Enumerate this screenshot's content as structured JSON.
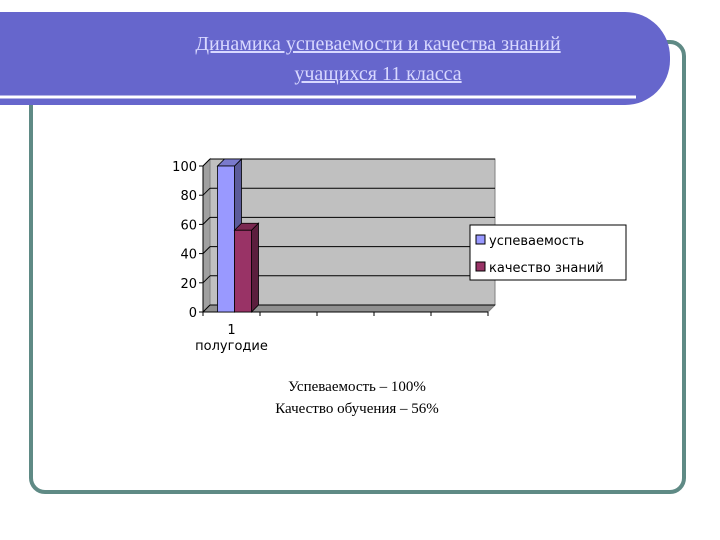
{
  "slide": {
    "title": [
      "Динамика успеваемости и качества знаний",
      "учащихся 11 класса"
    ],
    "notes": [
      "Успеваемость – 100%",
      "Качество обучения – 56%"
    ]
  },
  "chart_data": {
    "type": "bar",
    "categories": [
      "1 полугодие",
      null,
      null,
      null,
      null
    ],
    "series": [
      {
        "name": "успеваемость",
        "color": "#9999ff",
        "values": [
          100,
          null,
          null,
          null,
          null
        ]
      },
      {
        "name": "качество знаний",
        "color": "#993366",
        "values": [
          56,
          null,
          null,
          null,
          null
        ]
      }
    ],
    "ylim": [
      0,
      100
    ],
    "yticks": [
      0,
      20,
      40,
      60,
      80,
      100
    ],
    "grid": true,
    "legend": "right"
  }
}
